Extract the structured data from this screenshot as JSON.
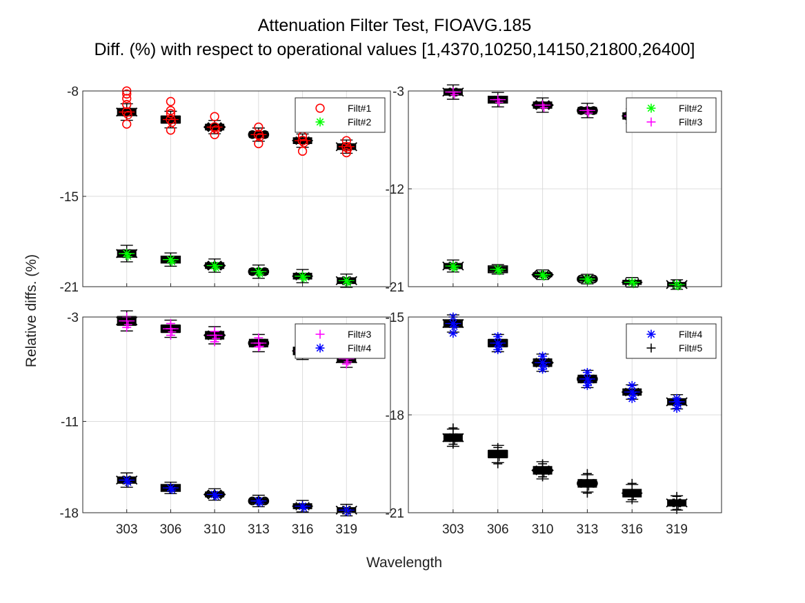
{
  "figure": {
    "title_line1": "Attenuation Filter Test, FIOAVG.185",
    "title_line2": "Diff. (%) with respect to operational values [1,4370,10250,14150,21800,26400]",
    "xlabel": "Wavelength",
    "ylabel": "Relative diffs. (%)"
  },
  "chart_data": [
    {
      "type": "scatter",
      "id": "top-left",
      "categories": [
        "303",
        "306",
        "310",
        "313",
        "316",
        "319"
      ],
      "ylim": [
        -21,
        -8
      ],
      "yticks": [
        "-8",
        "-15",
        "-21"
      ],
      "grid": true,
      "legend_position": "top-right",
      "series": [
        {
          "name": "Filt#1",
          "marker": "circle",
          "color": "#ff0000",
          "median": [
            -9.4,
            -9.9,
            -10.4,
            -10.9,
            -11.3,
            -11.7
          ],
          "spread": [
            0.25,
            0.25,
            0.2,
            0.2,
            0.2,
            0.2
          ],
          "outliers": [
            [
              -8.0,
              -8.2,
              -8.5,
              -8.9,
              -10.2
            ],
            [
              -8.7,
              -9.3,
              -9.5,
              -10.6
            ],
            [
              -9.7,
              -10.9
            ],
            [
              -10.4,
              -11.5
            ],
            [
              -11.0,
              -12.0
            ],
            [
              -11.3,
              -12.1
            ]
          ]
        },
        {
          "name": "Filt#2",
          "marker": "asterisk",
          "color": "#00ff00",
          "median": [
            -18.8,
            -19.2,
            -19.6,
            -20.0,
            -20.3,
            -20.6
          ],
          "spread": [
            0.25,
            0.2,
            0.2,
            0.2,
            0.2,
            0.2
          ],
          "outliers": [
            [],
            [],
            [],
            [],
            [],
            []
          ]
        }
      ]
    },
    {
      "type": "scatter",
      "id": "top-right",
      "categories": [
        "303",
        "306",
        "310",
        "313",
        "316",
        "319"
      ],
      "ylim": [
        -21,
        -3
      ],
      "yticks": [
        "-3",
        "-12",
        "-21"
      ],
      "grid": true,
      "legend_position": "top-right",
      "series": [
        {
          "name": "Filt#2",
          "marker": "asterisk",
          "color": "#00ff00",
          "median": [
            -19.1,
            -19.4,
            -19.9,
            -20.3,
            -20.6,
            -20.8
          ],
          "spread": [
            0.25,
            0.2,
            0.2,
            0.2,
            0.2,
            0.2
          ],
          "outliers": [
            [],
            [],
            [],
            [],
            [],
            []
          ]
        },
        {
          "name": "Filt#3",
          "marker": "plus",
          "color": "#ff00ff",
          "median": [
            -3.1,
            -3.8,
            -4.3,
            -4.8,
            -5.3,
            -5.8
          ],
          "spread": [
            0.3,
            0.3,
            0.3,
            0.3,
            0.3,
            0.3
          ],
          "outliers": [
            [],
            [],
            [],
            [],
            [],
            []
          ]
        }
      ]
    },
    {
      "type": "scatter",
      "id": "bottom-left",
      "categories": [
        "303",
        "306",
        "310",
        "313",
        "316",
        "319"
      ],
      "ylim": [
        -18,
        -3
      ],
      "yticks": [
        "-3",
        "-11",
        "-18"
      ],
      "grid": true,
      "legend_position": "top-right",
      "series": [
        {
          "name": "Filt#3",
          "marker": "plus",
          "color": "#ff00ff",
          "median": [
            -3.3,
            -3.9,
            -4.4,
            -5.0,
            -5.6,
            -6.2
          ],
          "spread": [
            0.35,
            0.3,
            0.3,
            0.3,
            0.3,
            0.3
          ],
          "outliers": [
            [
              -3.0,
              -3.8
            ],
            [
              -3.5,
              -4.4
            ],
            [
              -4.1,
              -4.9
            ],
            [
              -4.6,
              -5.3
            ],
            [],
            [
              -6.6
            ]
          ]
        },
        {
          "name": "Filt#4",
          "marker": "asterisk",
          "color": "#0000ff",
          "median": [
            -15.5,
            -16.1,
            -16.6,
            -17.1,
            -17.5,
            -17.8
          ],
          "spread": [
            0.25,
            0.2,
            0.2,
            0.2,
            0.2,
            0.2
          ],
          "outliers": [
            [],
            [],
            [],
            [],
            [],
            []
          ]
        }
      ]
    },
    {
      "type": "scatter",
      "id": "bottom-right",
      "categories": [
        "303",
        "306",
        "310",
        "313",
        "316",
        "319"
      ],
      "ylim": [
        -21,
        -15
      ],
      "yticks": [
        "-15",
        "-18",
        "-21"
      ],
      "grid": true,
      "legend_position": "top-right",
      "series": [
        {
          "name": "Filt#4",
          "marker": "asterisk",
          "color": "#0000ff",
          "median": [
            -15.2,
            -15.8,
            -16.4,
            -16.9,
            -17.3,
            -17.6
          ],
          "spread": [
            0.12,
            0.12,
            0.12,
            0.12,
            0.1,
            0.1
          ],
          "outliers": [
            [
              -15.0,
              -15.5
            ],
            [
              -15.6,
              -16.0
            ],
            [
              -16.2,
              -16.6
            ],
            [
              -16.7,
              -17.1
            ],
            [
              -17.1,
              -17.5
            ],
            [
              -17.5,
              -17.8
            ]
          ]
        },
        {
          "name": "Filt#5",
          "marker": "plus",
          "color": "#000000",
          "median": [
            -18.7,
            -19.2,
            -19.7,
            -20.1,
            -20.4,
            -20.7
          ],
          "spread": [
            0.12,
            0.12,
            0.12,
            0.12,
            0.12,
            0.1
          ],
          "outliers": [
            [
              -18.4,
              -18.9
            ],
            [
              -19.0,
              -19.5
            ],
            [
              -19.5,
              -19.9
            ],
            [
              -19.8,
              -20.4
            ],
            [
              -20.1,
              -20.6
            ],
            [
              -20.5,
              -20.9
            ]
          ]
        }
      ]
    }
  ]
}
